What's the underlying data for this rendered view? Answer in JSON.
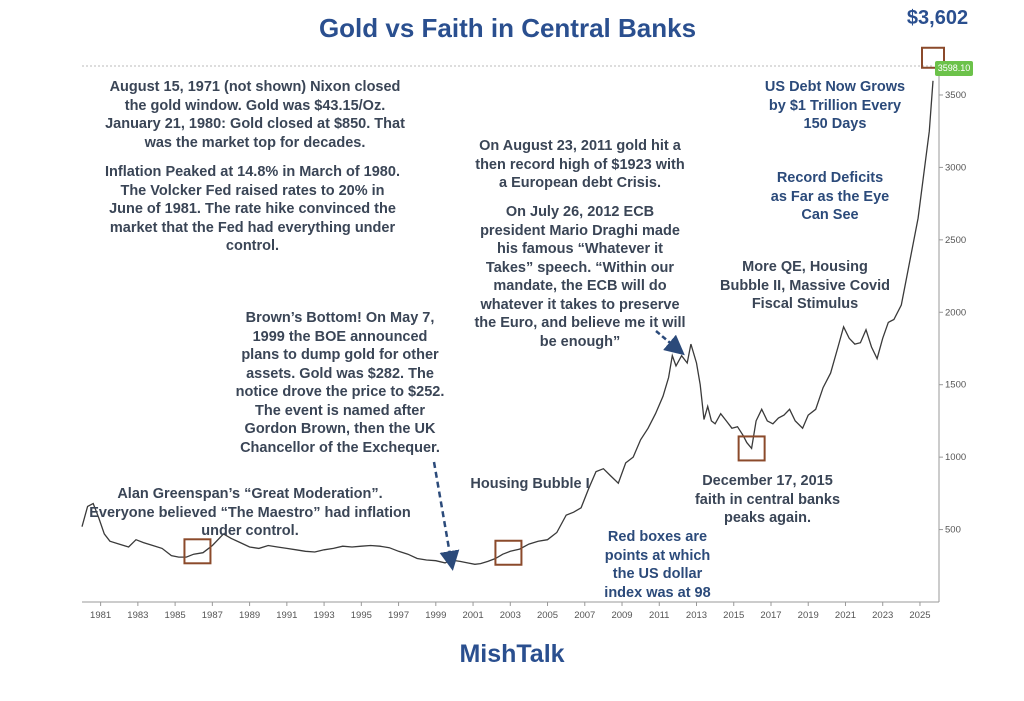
{
  "chart_data": {
    "type": "line",
    "title": "Gold vs Faith in Central Banks",
    "xlabel": "",
    "ylabel": "",
    "xlim": [
      1980,
      2025.7
    ],
    "ylim": [
      0,
      3700
    ],
    "y_ticks": [
      "500",
      "1000",
      "1500",
      "2000",
      "2500",
      "3000",
      "3500"
    ],
    "x_ticks": [
      "1981",
      "1983",
      "1985",
      "1987",
      "1989",
      "1991",
      "1993",
      "1995",
      "1997",
      "1999",
      "2001",
      "2003",
      "2005",
      "2007",
      "2009",
      "2011",
      "2013",
      "2015",
      "2017",
      "2019",
      "2021",
      "2023",
      "2025"
    ],
    "grid": false,
    "series": [
      {
        "x": [
          1980.0,
          1980.3,
          1980.6,
          1980.9,
          1981.2,
          1981.5,
          1982.0,
          1982.5,
          1982.9,
          1983.3,
          1983.8,
          1984.3,
          1984.8,
          1985.2,
          1985.6,
          1986.0,
          1986.5,
          1987.0,
          1987.6,
          1988.0,
          1988.5,
          1989.0,
          1989.5,
          1990.0,
          1990.5,
          1991.0,
          1991.5,
          1992.0,
          1992.5,
          1993.0,
          1993.5,
          1994.0,
          1994.5,
          1995.0,
          1995.5,
          1996.0,
          1996.5,
          1997.0,
          1997.5,
          1998.0,
          1998.5,
          1999.0,
          1999.5,
          1999.8,
          2000.3,
          2000.7,
          2001.1,
          2001.4,
          2001.8,
          2002.2,
          2002.6,
          2003.0,
          2003.5,
          2004.0,
          2004.5,
          2005.0,
          2005.5,
          2006.0,
          2006.4,
          2006.8,
          2007.2,
          2007.6,
          2008.0,
          2008.4,
          2008.8,
          2009.2,
          2009.6,
          2010.0,
          2010.4,
          2010.8,
          2011.2,
          2011.5,
          2011.7,
          2011.9,
          2012.2,
          2012.5,
          2012.7,
          2013.0,
          2013.2,
          2013.4,
          2013.6,
          2013.8,
          2014.0,
          2014.3,
          2014.6,
          2014.9,
          2015.2,
          2015.5,
          2015.7,
          2015.96,
          2016.2,
          2016.5,
          2016.8,
          2017.1,
          2017.4,
          2017.7,
          2018.0,
          2018.3,
          2018.7,
          2019.0,
          2019.4,
          2019.8,
          2020.2,
          2020.6,
          2020.9,
          2021.2,
          2021.5,
          2021.8,
          2022.1,
          2022.4,
          2022.7,
          2023.0,
          2023.3,
          2023.6,
          2024.0,
          2024.3,
          2024.6,
          2024.9,
          2025.2,
          2025.5,
          2025.7
        ],
        "y": [
          520,
          660,
          680,
          580,
          470,
          420,
          400,
          380,
          430,
          410,
          390,
          370,
          320,
          310,
          310,
          330,
          340,
          390,
          470,
          440,
          410,
          380,
          370,
          390,
          380,
          370,
          360,
          350,
          345,
          360,
          370,
          385,
          380,
          385,
          390,
          385,
          375,
          350,
          330,
          300,
          290,
          285,
          270,
          290,
          280,
          270,
          260,
          265,
          280,
          300,
          330,
          350,
          365,
          400,
          420,
          430,
          480,
          600,
          620,
          650,
          780,
          900,
          920,
          870,
          820,
          960,
          1000,
          1120,
          1200,
          1300,
          1420,
          1550,
          1700,
          1630,
          1700,
          1650,
          1780,
          1650,
          1500,
          1260,
          1350,
          1250,
          1230,
          1300,
          1250,
          1200,
          1210,
          1150,
          1100,
          1060,
          1250,
          1330,
          1250,
          1230,
          1270,
          1290,
          1330,
          1250,
          1200,
          1290,
          1330,
          1480,
          1580,
          1760,
          1900,
          1820,
          1780,
          1790,
          1880,
          1760,
          1680,
          1820,
          1930,
          1950,
          2050,
          2250,
          2450,
          2650,
          2950,
          3250,
          3598.1
        ],
        "last_value_label": "3598.10"
      }
    ],
    "marked_points": [
      {
        "x": 1986.2,
        "y": 350
      },
      {
        "x": 2002.9,
        "y": 340
      },
      {
        "x": 2015.96,
        "y": 1060
      }
    ],
    "annotations": {
      "nixon": [
        "August 15, 1971 (not shown) Nixon closed",
        "the gold window. Gold was $43.15/Oz.",
        "January 21, 1980: Gold closed at $850. That",
        "was the market top for decades."
      ],
      "volcker": [
        "Inflation Peaked at 14.8% in March of 1980.",
        "The Volcker Fed raised rates to 20% in",
        "June of 1981. The rate hike convinced the",
        "market that the Fed had everything under",
        "control."
      ],
      "browns": [
        "Brown’s Bottom! On May 7,",
        "1999 the BOE announced",
        "plans to dump gold for other",
        "assets. Gold was $282. The",
        "notice drove the price to $252.",
        "The event is named after",
        "Gordon Brown, then the UK",
        "Chancellor of the Exchequer."
      ],
      "greenspan": [
        "Alan Greenspan’s “Great Moderation”.",
        "Everyone believed “The Maestro” had inflation",
        "under control."
      ],
      "housing1": [
        "Housing Bubble I"
      ],
      "euro2011": [
        "On August 23, 2011 gold hit a",
        "then record high of $1923 with",
        "a European debt Crisis."
      ],
      "draghi": [
        "On July 26, 2012 ECB",
        "president Mario Draghi made",
        "his famous “Whatever it",
        "Takes” speech. “Within our",
        "mandate, the ECB will do",
        "whatever it takes to preserve",
        "the Euro, and believe me it will",
        "be enough”"
      ],
      "debt": [
        "US Debt Now Grows",
        "by $1 Trillion Every",
        "150 Days"
      ],
      "deficits": [
        "Record Deficits",
        "as Far as the Eye",
        "Can See"
      ],
      "qe": [
        "More QE, Housing",
        "Bubble II, Massive Covid",
        "Fiscal Stimulus"
      ],
      "dec2015": [
        "December 17, 2015",
        "faith in central banks",
        "peaks again."
      ],
      "redboxes": [
        "Red boxes are",
        "points at which",
        "the US dollar",
        "index was at 98"
      ]
    }
  },
  "labels": {
    "title": "Gold vs Faith in Central Banks",
    "price_label": "$3,602",
    "last_value": "3598.10",
    "brand": "MishTalk"
  },
  "colors": {
    "title": "#2a4f8f",
    "annotation": "#2b4a7a",
    "line": "#3a3a3a",
    "box": "#8b4a2b",
    "last_value_bg": "#6cc24a"
  }
}
